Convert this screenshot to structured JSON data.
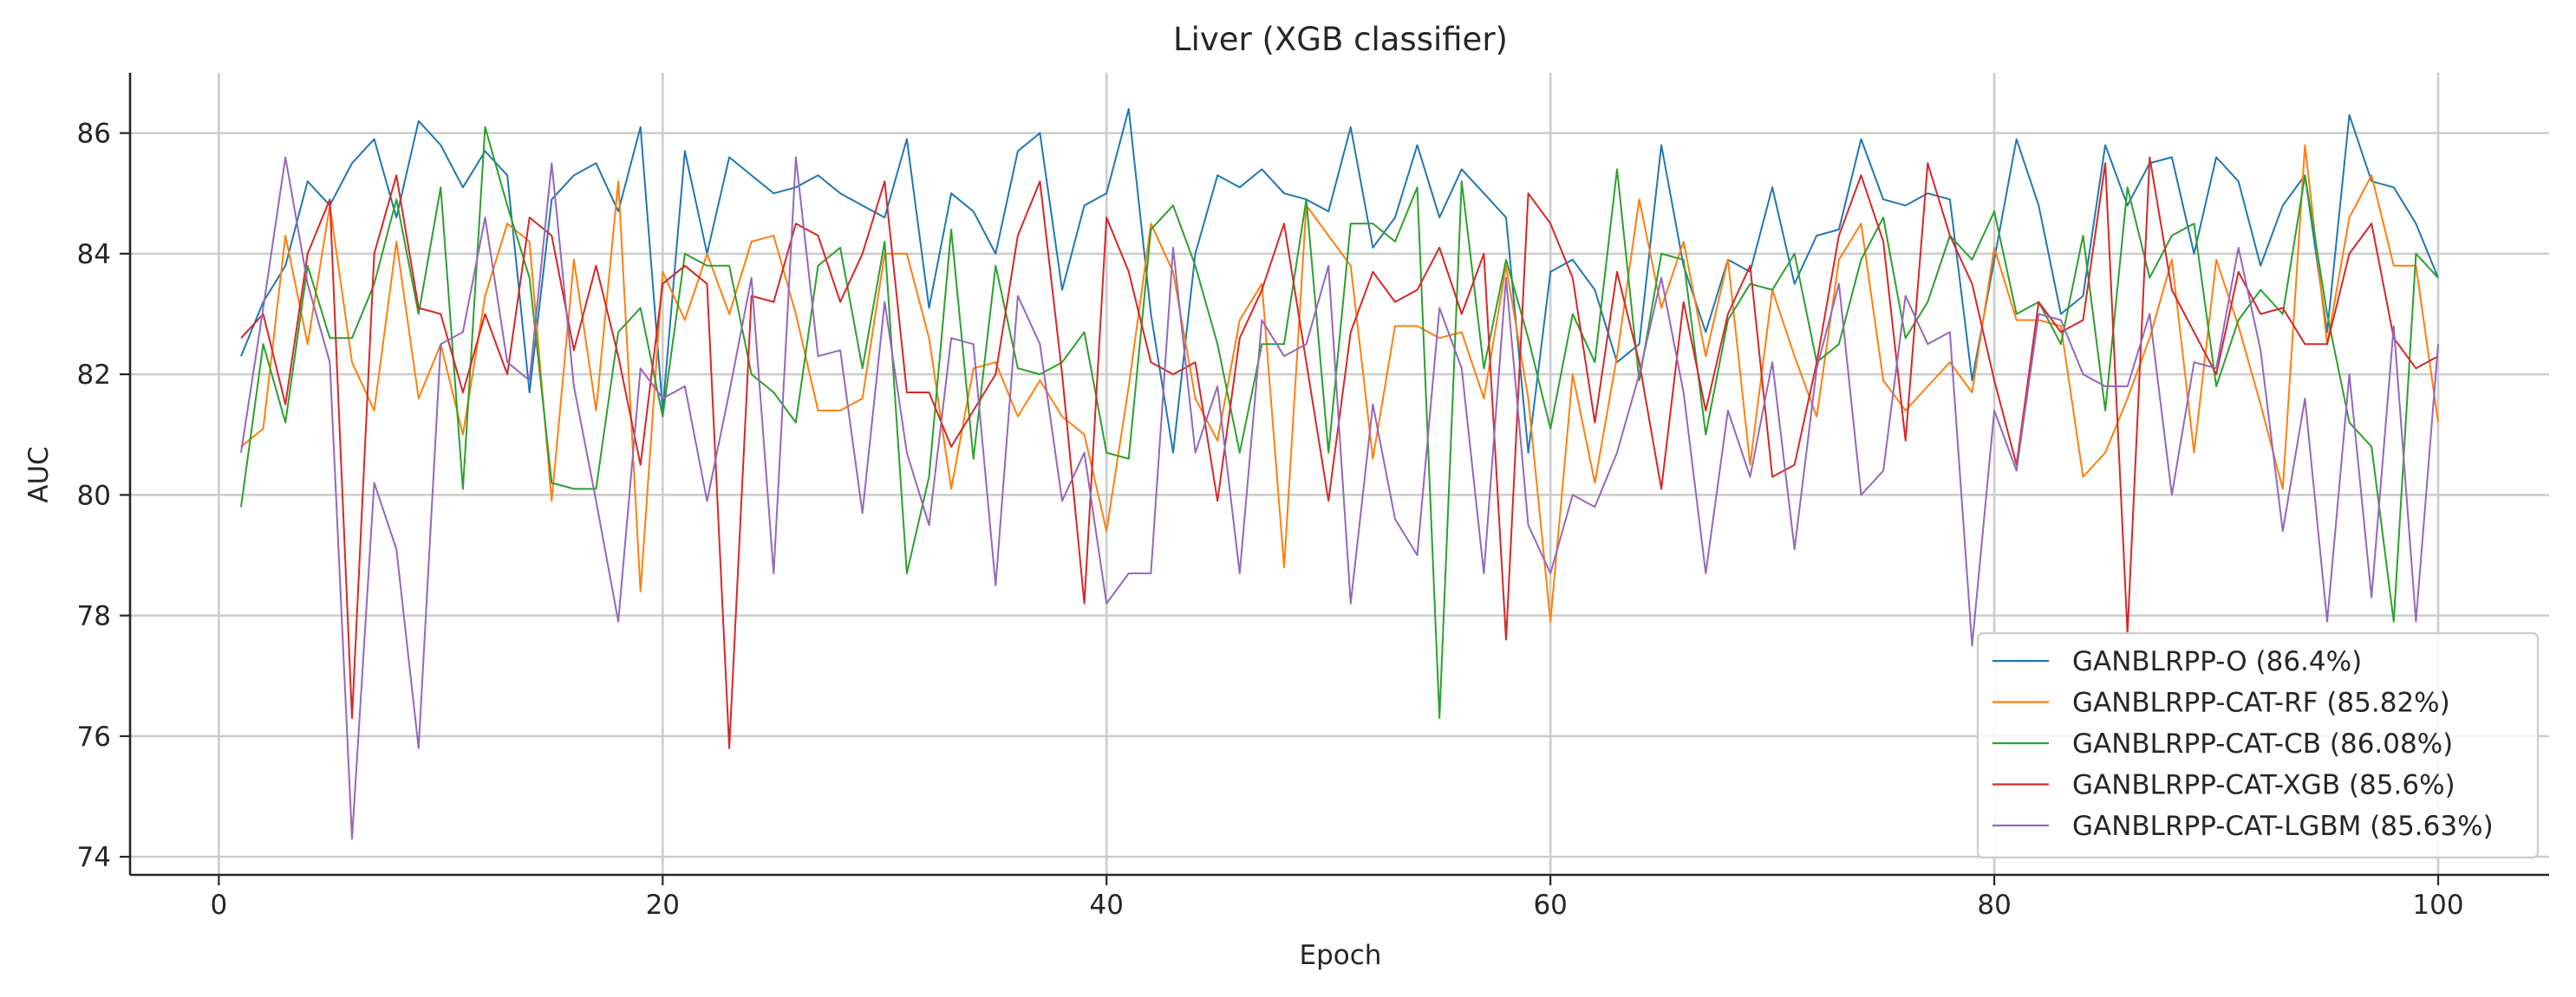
{
  "chart_data": {
    "type": "line",
    "title": "Liver (XGB classifier)",
    "xlabel": "Epoch",
    "ylabel": "AUC",
    "xlim": [
      -4,
      105
    ],
    "ylim": [
      73.7,
      87.0
    ],
    "x_ticks": [
      0,
      20,
      40,
      60,
      80,
      100
    ],
    "y_ticks": [
      74,
      76,
      78,
      80,
      82,
      84,
      86
    ],
    "grid": true,
    "legend_position": "lower-right",
    "x": [
      1,
      2,
      3,
      4,
      5,
      6,
      7,
      8,
      9,
      10,
      11,
      12,
      13,
      14,
      15,
      16,
      17,
      18,
      19,
      20,
      21,
      22,
      23,
      24,
      25,
      26,
      27,
      28,
      29,
      30,
      31,
      32,
      33,
      34,
      35,
      36,
      37,
      38,
      39,
      40,
      41,
      42,
      43,
      44,
      45,
      46,
      47,
      48,
      49,
      50,
      51,
      52,
      53,
      54,
      55,
      56,
      57,
      58,
      59,
      60,
      61,
      62,
      63,
      64,
      65,
      66,
      67,
      68,
      69,
      70,
      71,
      72,
      73,
      74,
      75,
      76,
      77,
      78,
      79,
      80,
      81,
      82,
      83,
      84,
      85,
      86,
      87,
      88,
      89,
      90,
      91,
      92,
      93,
      94,
      95,
      96,
      97,
      98,
      99,
      100
    ],
    "series": [
      {
        "name": "GANBLRPP-O (86.4%)",
        "color": "#1f77b4",
        "values": [
          82.3,
          83.2,
          83.8,
          85.2,
          84.8,
          85.5,
          85.9,
          84.6,
          86.2,
          85.8,
          85.1,
          85.7,
          85.3,
          81.7,
          84.9,
          85.3,
          85.5,
          84.7,
          86.1,
          81.4,
          85.7,
          84.0,
          85.6,
          85.3,
          85.0,
          85.1,
          85.3,
          85.0,
          84.8,
          84.6,
          85.9,
          83.1,
          85.0,
          84.7,
          84.0,
          85.7,
          86.0,
          83.4,
          84.8,
          85.0,
          86.4,
          83.0,
          80.7,
          84.0,
          85.3,
          85.1,
          85.4,
          85.0,
          84.9,
          84.7,
          86.1,
          84.1,
          84.6,
          85.8,
          84.6,
          85.4,
          85.0,
          84.6,
          80.7,
          83.7,
          83.9,
          83.4,
          82.2,
          82.5,
          85.8,
          83.8,
          82.7,
          83.9,
          83.7,
          85.1,
          83.5,
          84.3,
          84.4,
          85.9,
          84.9,
          84.8,
          85.0,
          84.9,
          81.9,
          83.9,
          85.9,
          84.8,
          83.0,
          83.3,
          85.8,
          84.8,
          85.5,
          85.6,
          84.0,
          85.6,
          85.2,
          83.8,
          84.8,
          85.3,
          82.7,
          86.3,
          85.2,
          85.1,
          84.5,
          83.6
        ]
      },
      {
        "name": "GANBLRPP-CAT-RF (85.82%)",
        "color": "#ff7f0e",
        "values": [
          80.8,
          81.1,
          84.3,
          82.5,
          84.8,
          82.2,
          81.4,
          84.2,
          81.6,
          82.5,
          81.0,
          83.3,
          84.5,
          84.2,
          79.9,
          83.9,
          81.4,
          85.2,
          78.4,
          83.7,
          82.9,
          84.0,
          83.0,
          84.2,
          84.3,
          83.0,
          81.4,
          81.4,
          81.6,
          84.0,
          84.0,
          82.6,
          80.1,
          82.1,
          82.2,
          81.3,
          81.9,
          81.3,
          81.0,
          79.4,
          81.8,
          84.5,
          83.7,
          81.6,
          80.9,
          82.9,
          83.5,
          78.8,
          84.8,
          84.3,
          83.8,
          80.6,
          82.8,
          82.8,
          82.6,
          82.7,
          81.6,
          83.8,
          81.6,
          77.9,
          82.0,
          80.2,
          82.3,
          84.9,
          83.1,
          84.2,
          82.3,
          83.9,
          80.5,
          83.4,
          82.3,
          81.3,
          83.9,
          84.5,
          81.9,
          81.4,
          81.8,
          82.2,
          81.7,
          84.1,
          82.9,
          82.9,
          82.8,
          80.3,
          80.7,
          81.6,
          82.6,
          83.9,
          80.7,
          83.9,
          82.8,
          81.5,
          80.1,
          85.8,
          82.5,
          84.6,
          85.3,
          83.8,
          83.8,
          81.2
        ]
      },
      {
        "name": "GANBLRPP-CAT-CB (86.08%)",
        "color": "#2ca02c",
        "values": [
          79.8,
          82.5,
          81.2,
          83.8,
          82.6,
          82.6,
          83.5,
          84.9,
          83.0,
          85.1,
          80.1,
          86.1,
          84.8,
          83.6,
          80.2,
          80.1,
          80.1,
          82.7,
          83.1,
          81.3,
          84.0,
          83.8,
          83.8,
          82.0,
          81.7,
          81.2,
          83.8,
          84.1,
          82.1,
          84.2,
          78.7,
          80.3,
          84.4,
          80.6,
          83.8,
          82.1,
          82.0,
          82.2,
          82.7,
          80.7,
          80.6,
          84.4,
          84.8,
          83.8,
          82.5,
          80.7,
          82.5,
          82.5,
          84.9,
          80.7,
          84.5,
          84.5,
          84.2,
          85.1,
          76.3,
          85.2,
          82.1,
          83.9,
          82.6,
          81.1,
          83.0,
          82.2,
          85.4,
          81.9,
          84.0,
          83.9,
          81.0,
          82.9,
          83.5,
          83.4,
          84.0,
          82.2,
          82.5,
          83.9,
          84.6,
          82.6,
          83.2,
          84.3,
          83.9,
          84.7,
          83.0,
          83.2,
          82.5,
          84.3,
          81.4,
          85.1,
          83.6,
          84.3,
          84.5,
          81.8,
          82.9,
          83.4,
          83.0,
          85.3,
          83.0,
          81.2,
          80.8,
          77.9,
          84.0,
          83.6
        ]
      },
      {
        "name": "GANBLRPP-CAT-XGB (85.6%)",
        "color": "#d62728",
        "values": [
          82.6,
          83.0,
          81.5,
          84.0,
          84.9,
          76.3,
          84.0,
          85.3,
          83.1,
          83.0,
          81.7,
          83.0,
          82.0,
          84.6,
          84.3,
          82.4,
          83.8,
          82.3,
          80.5,
          83.5,
          83.8,
          83.5,
          75.8,
          83.3,
          83.2,
          84.5,
          84.3,
          83.2,
          84.0,
          85.2,
          81.7,
          81.7,
          80.8,
          81.4,
          82.0,
          84.3,
          85.2,
          82.0,
          78.2,
          84.6,
          83.7,
          82.2,
          82.0,
          82.2,
          79.9,
          82.6,
          83.4,
          84.5,
          82.2,
          79.9,
          82.7,
          83.7,
          83.2,
          83.4,
          84.1,
          83.0,
          84.0,
          77.6,
          85.0,
          84.5,
          83.6,
          81.2,
          83.7,
          82.2,
          80.1,
          83.2,
          81.4,
          83.0,
          83.8,
          80.3,
          80.5,
          82.2,
          84.3,
          85.3,
          84.2,
          80.9,
          85.5,
          84.3,
          83.5,
          81.9,
          80.5,
          83.2,
          82.7,
          82.9,
          85.5,
          77.7,
          85.6,
          83.4,
          82.7,
          82.0,
          83.7,
          83.0,
          83.1,
          82.5,
          82.5,
          84.0,
          84.5,
          82.6,
          82.1,
          82.3
        ]
      },
      {
        "name": "GANBLRPP-CAT-LGBM (85.63%)",
        "color": "#9467bd",
        "values": [
          80.7,
          83.1,
          85.6,
          83.5,
          82.2,
          74.3,
          80.2,
          79.1,
          75.8,
          82.5,
          82.7,
          84.6,
          82.2,
          81.9,
          85.5,
          81.8,
          79.9,
          77.9,
          82.1,
          81.6,
          81.8,
          79.9,
          81.7,
          83.6,
          78.7,
          85.6,
          82.3,
          82.4,
          79.7,
          83.2,
          80.7,
          79.5,
          82.6,
          82.5,
          78.5,
          83.3,
          82.5,
          79.9,
          80.7,
          78.2,
          78.7,
          78.7,
          84.1,
          80.7,
          81.8,
          78.7,
          82.9,
          82.3,
          82.5,
          83.8,
          78.2,
          81.5,
          79.6,
          79.0,
          83.1,
          82.1,
          78.7,
          83.6,
          79.5,
          78.7,
          80.0,
          79.8,
          80.7,
          82.0,
          83.6,
          81.7,
          78.7,
          81.4,
          80.3,
          82.2,
          79.1,
          82.1,
          83.5,
          80.0,
          80.4,
          83.3,
          82.5,
          82.7,
          77.5,
          81.4,
          80.4,
          83.0,
          82.9,
          82.0,
          81.8,
          81.8,
          83.0,
          80.0,
          82.2,
          82.1,
          84.1,
          82.4,
          79.4,
          81.6,
          77.9,
          82.0,
          78.3,
          82.8,
          77.9,
          82.5
        ]
      }
    ]
  }
}
